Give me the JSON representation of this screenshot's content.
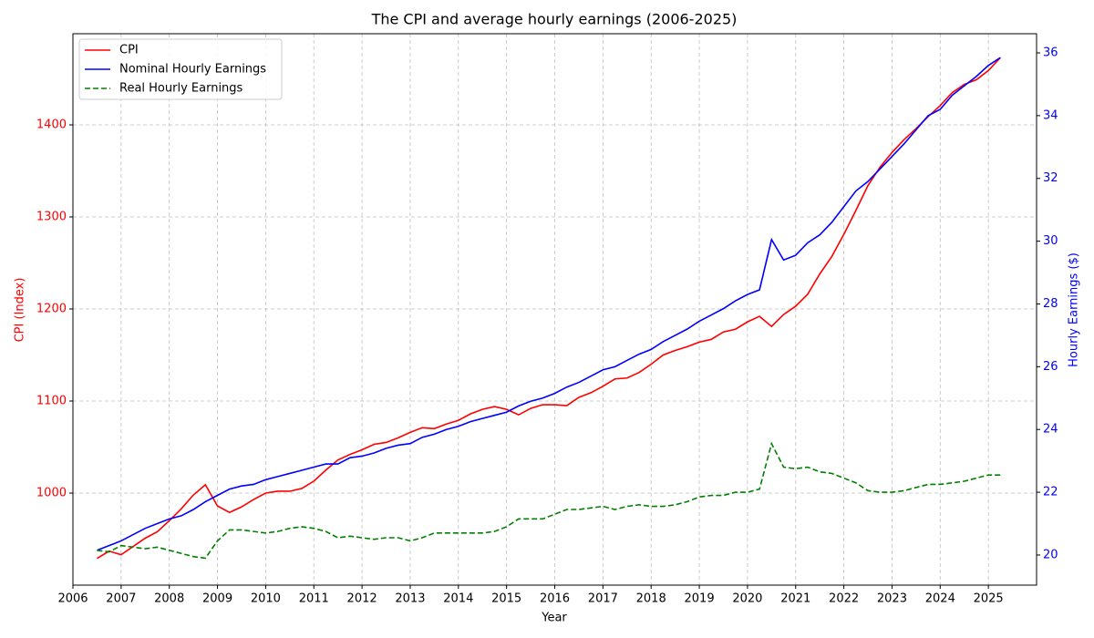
{
  "chart_data": {
    "type": "line",
    "title": "The CPI and average hourly earnings (2006-2025)",
    "xlabel": "Year",
    "ylabel": "CPI (Index)",
    "y2label": "Hourly Earnings ($)",
    "x": [
      2006.5,
      2006.75,
      2007,
      2007.25,
      2007.5,
      2007.75,
      2008,
      2008.25,
      2008.5,
      2008.75,
      2009,
      2009.25,
      2009.5,
      2009.75,
      2010,
      2010.25,
      2010.5,
      2010.75,
      2011,
      2011.25,
      2011.5,
      2011.75,
      2012,
      2012.25,
      2012.5,
      2012.75,
      2013,
      2013.25,
      2013.5,
      2013.75,
      2014,
      2014.25,
      2014.5,
      2014.75,
      2015,
      2015.25,
      2015.5,
      2015.75,
      2016,
      2016.25,
      2016.5,
      2016.75,
      2017,
      2017.25,
      2017.5,
      2017.75,
      2018,
      2018.25,
      2018.5,
      2018.75,
      2019,
      2019.25,
      2019.5,
      2019.75,
      2020,
      2020.25,
      2020.5,
      2020.75,
      2021,
      2021.25,
      2021.5,
      2021.75,
      2022,
      2022.25,
      2022.5,
      2022.75,
      2023,
      2023.25,
      2023.5,
      2023.75,
      2024,
      2024.25,
      2024.5,
      2024.75,
      2025,
      2025.25
    ],
    "series": [
      {
        "name": "CPI",
        "color": "#ff0000",
        "axis": "y",
        "dashed": false,
        "values": [
          929,
          937,
          933,
          942,
          951,
          958,
          970,
          983,
          998,
          1009,
          986,
          979,
          985,
          993,
          1000,
          1002,
          1002,
          1005,
          1013,
          1025,
          1036,
          1042,
          1047,
          1053,
          1055,
          1060,
          1066,
          1071,
          1070,
          1075,
          1079,
          1086,
          1091,
          1094,
          1091,
          1085,
          1092,
          1096,
          1096,
          1095,
          1104,
          1109,
          1116,
          1124,
          1125,
          1131,
          1140,
          1150,
          1155,
          1159,
          1164,
          1167,
          1175,
          1178,
          1186,
          1192,
          1181,
          1194,
          1203,
          1216,
          1238,
          1257,
          1281,
          1307,
          1334,
          1354,
          1370,
          1384,
          1396,
          1409,
          1421,
          1435,
          1444,
          1449,
          1459,
          1473
        ]
      },
      {
        "name": "Nominal Hourly Earnings",
        "color": "#0000ff",
        "axis": "y2",
        "dashed": false,
        "values": [
          20.15,
          20.3,
          20.45,
          20.65,
          20.85,
          21.0,
          21.15,
          21.25,
          21.45,
          21.7,
          21.9,
          22.1,
          22.2,
          22.25,
          22.4,
          22.5,
          22.6,
          22.7,
          22.8,
          22.9,
          22.9,
          23.1,
          23.15,
          23.25,
          23.4,
          23.5,
          23.55,
          23.75,
          23.85,
          24.0,
          24.1,
          24.25,
          24.35,
          24.45,
          24.55,
          24.75,
          24.9,
          25.0,
          25.15,
          25.35,
          25.5,
          25.7,
          25.9,
          26.0,
          26.2,
          26.4,
          26.55,
          26.8,
          27.0,
          27.2,
          27.45,
          27.65,
          27.85,
          28.1,
          28.3,
          28.45,
          30.05,
          29.4,
          29.55,
          29.95,
          30.2,
          30.6,
          31.1,
          31.6,
          31.9,
          32.3,
          32.7,
          33.1,
          33.55,
          34.0,
          34.2,
          34.65,
          34.95,
          35.25,
          35.6,
          35.85
        ]
      },
      {
        "name": "Real Hourly Earnings",
        "color": "#008000",
        "axis": "y2",
        "dashed": true,
        "values": [
          20.15,
          20.1,
          20.3,
          20.25,
          20.2,
          20.25,
          20.15,
          20.05,
          19.95,
          19.9,
          20.45,
          20.8,
          20.8,
          20.75,
          20.7,
          20.75,
          20.85,
          20.9,
          20.85,
          20.75,
          20.55,
          20.6,
          20.55,
          20.5,
          20.55,
          20.55,
          20.45,
          20.55,
          20.7,
          20.7,
          20.7,
          20.7,
          20.7,
          20.75,
          20.9,
          21.15,
          21.15,
          21.15,
          21.3,
          21.45,
          21.45,
          21.5,
          21.55,
          21.45,
          21.55,
          21.6,
          21.55,
          21.55,
          21.6,
          21.7,
          21.85,
          21.9,
          21.9,
          22.0,
          22.0,
          22.1,
          23.55,
          22.8,
          22.75,
          22.8,
          22.65,
          22.6,
          22.45,
          22.3,
          22.05,
          22.0,
          22.0,
          22.05,
          22.15,
          22.25,
          22.25,
          22.3,
          22.35,
          22.45,
          22.55,
          22.55
        ]
      }
    ],
    "xlim": [
      2006,
      2026
    ],
    "xticks": [
      2006,
      2007,
      2008,
      2009,
      2010,
      2011,
      2012,
      2013,
      2014,
      2015,
      2016,
      2017,
      2018,
      2019,
      2020,
      2021,
      2022,
      2023,
      2024,
      2025
    ],
    "ylim": [
      900,
      1499
    ],
    "yticks": [
      1000,
      1100,
      1200,
      1300,
      1400
    ],
    "y2lim": [
      19.04,
      36.61
    ],
    "y2ticks": [
      20,
      22,
      24,
      26,
      28,
      30,
      32,
      34,
      36
    ],
    "grid": true,
    "legend": "upper left"
  }
}
